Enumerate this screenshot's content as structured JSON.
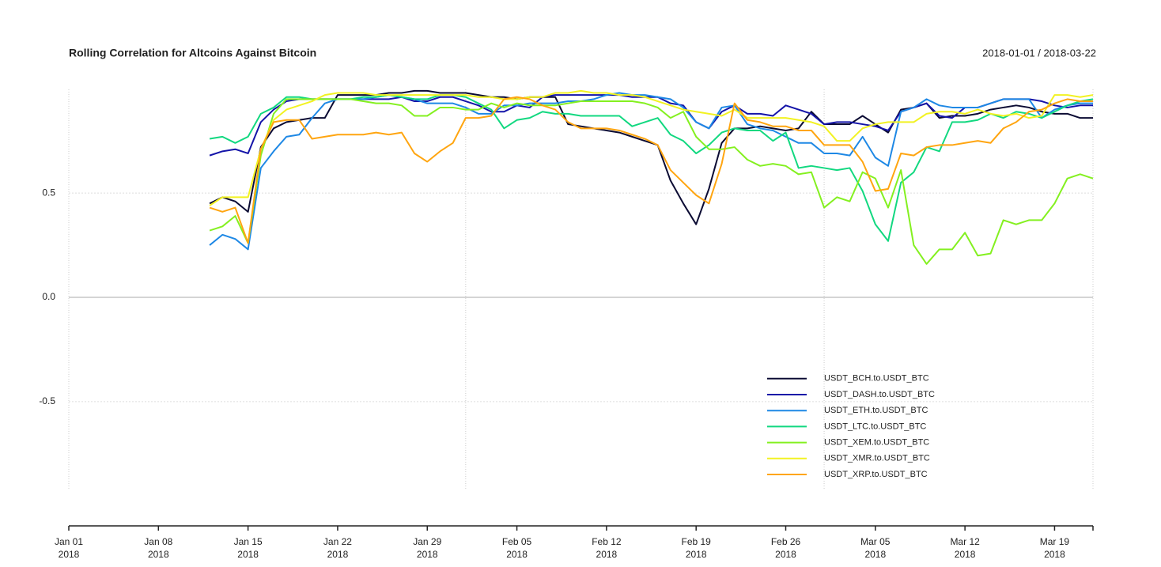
{
  "chart_data": {
    "type": "line",
    "title": "Rolling Correlation for Altcoins Against Bitcoin",
    "subtitle": "2018-01-01 / 2018-03-22",
    "x": [
      "2018-01-12",
      "2018-01-13",
      "2018-01-14",
      "2018-01-15",
      "2018-01-16",
      "2018-01-17",
      "2018-01-18",
      "2018-01-19",
      "2018-01-20",
      "2018-01-21",
      "2018-01-22",
      "2018-01-23",
      "2018-01-24",
      "2018-01-25",
      "2018-01-26",
      "2018-01-27",
      "2018-01-28",
      "2018-01-29",
      "2018-01-30",
      "2018-01-31",
      "2018-02-01",
      "2018-02-02",
      "2018-02-03",
      "2018-02-04",
      "2018-02-05",
      "2018-02-06",
      "2018-02-07",
      "2018-02-08",
      "2018-02-09",
      "2018-02-10",
      "2018-02-11",
      "2018-02-12",
      "2018-02-13",
      "2018-02-14",
      "2018-02-15",
      "2018-02-16",
      "2018-02-17",
      "2018-02-18",
      "2018-02-19",
      "2018-02-20",
      "2018-02-21",
      "2018-02-22",
      "2018-02-23",
      "2018-02-24",
      "2018-02-25",
      "2018-02-26",
      "2018-02-27",
      "2018-02-28",
      "2018-03-01",
      "2018-03-02",
      "2018-03-03",
      "2018-03-04",
      "2018-03-05",
      "2018-03-06",
      "2018-03-07",
      "2018-03-08",
      "2018-03-09",
      "2018-03-10",
      "2018-03-11",
      "2018-03-12",
      "2018-03-13",
      "2018-03-14",
      "2018-03-15",
      "2018-03-16",
      "2018-03-17",
      "2018-03-18",
      "2018-03-19",
      "2018-03-20",
      "2018-03-21",
      "2018-03-22"
    ],
    "series": [
      {
        "name": "USDT_BCH.to.USDT_BTC",
        "color": "#0b0b33",
        "values": [
          0.45,
          0.48,
          0.46,
          0.41,
          0.72,
          0.81,
          0.84,
          0.85,
          0.86,
          0.86,
          0.97,
          0.97,
          0.97,
          0.97,
          0.98,
          0.98,
          0.99,
          0.99,
          0.98,
          0.98,
          0.98,
          0.97,
          0.96,
          0.96,
          0.95,
          0.96,
          0.96,
          0.96,
          0.83,
          0.82,
          0.81,
          0.8,
          0.79,
          0.77,
          0.75,
          0.73,
          0.56,
          0.45,
          0.35,
          0.52,
          0.74,
          0.81,
          0.81,
          0.82,
          0.81,
          0.8,
          0.81,
          0.89,
          0.83,
          0.83,
          0.83,
          0.87,
          0.83,
          0.79,
          0.9,
          0.91,
          0.93,
          0.86,
          0.87,
          0.87,
          0.88,
          0.9,
          0.91,
          0.92,
          0.91,
          0.89,
          0.88,
          0.88,
          0.86,
          0.86
        ]
      },
      {
        "name": "USDT_DASH.to.USDT_BTC",
        "color": "#1414a8",
        "values": [
          0.68,
          0.7,
          0.71,
          0.69,
          0.84,
          0.9,
          0.94,
          0.95,
          0.95,
          0.95,
          0.95,
          0.95,
          0.95,
          0.95,
          0.95,
          0.96,
          0.94,
          0.94,
          0.96,
          0.96,
          0.94,
          0.92,
          0.89,
          0.89,
          0.92,
          0.91,
          0.96,
          0.97,
          0.97,
          0.97,
          0.97,
          0.97,
          0.97,
          0.96,
          0.96,
          0.96,
          0.93,
          0.92,
          0.84,
          0.81,
          0.89,
          0.92,
          0.88,
          0.88,
          0.87,
          0.92,
          0.9,
          0.88,
          0.83,
          0.84,
          0.84,
          0.83,
          0.82,
          0.8,
          0.89,
          0.91,
          0.93,
          0.87,
          0.86,
          0.91,
          0.91,
          0.93,
          0.95,
          0.95,
          0.95,
          0.94,
          0.92,
          0.91,
          0.92,
          0.92
        ]
      },
      {
        "name": "USDT_ETH.to.USDT_BTC",
        "color": "#1e88e5",
        "values": [
          0.25,
          0.3,
          0.28,
          0.23,
          0.62,
          0.7,
          0.77,
          0.78,
          0.86,
          0.93,
          0.95,
          0.95,
          0.95,
          0.96,
          0.97,
          0.96,
          0.95,
          0.93,
          0.93,
          0.93,
          0.91,
          0.88,
          0.88,
          0.92,
          0.92,
          0.93,
          0.93,
          0.93,
          0.94,
          0.94,
          0.95,
          0.97,
          0.98,
          0.97,
          0.97,
          0.96,
          0.95,
          0.91,
          0.84,
          0.81,
          0.91,
          0.92,
          0.83,
          0.81,
          0.8,
          0.77,
          0.74,
          0.74,
          0.69,
          0.69,
          0.68,
          0.77,
          0.67,
          0.63,
          0.89,
          0.91,
          0.95,
          0.92,
          0.91,
          0.91,
          0.91,
          0.93,
          0.95,
          0.95,
          0.95,
          0.86,
          0.9,
          0.92,
          0.93,
          0.93
        ]
      },
      {
        "name": "USDT_LTC.to.USDT_BTC",
        "color": "#12d880",
        "values": [
          0.76,
          0.77,
          0.74,
          0.77,
          0.88,
          0.91,
          0.96,
          0.96,
          0.95,
          0.95,
          0.95,
          0.95,
          0.96,
          0.96,
          0.97,
          0.96,
          0.95,
          0.95,
          0.97,
          0.97,
          0.96,
          0.93,
          0.9,
          0.81,
          0.85,
          0.86,
          0.89,
          0.88,
          0.88,
          0.87,
          0.87,
          0.87,
          0.87,
          0.82,
          0.84,
          0.86,
          0.78,
          0.75,
          0.69,
          0.73,
          0.79,
          0.81,
          0.8,
          0.8,
          0.75,
          0.79,
          0.62,
          0.63,
          0.62,
          0.61,
          0.62,
          0.51,
          0.35,
          0.27,
          0.55,
          0.6,
          0.72,
          0.7,
          0.84,
          0.84,
          0.85,
          0.88,
          0.86,
          0.89,
          0.88,
          0.86,
          0.89,
          0.92,
          0.94,
          0.95
        ]
      },
      {
        "name": "USDT_XEM.to.USDT_BTC",
        "color": "#84f020",
        "values": [
          0.32,
          0.34,
          0.39,
          0.26,
          0.68,
          0.88,
          0.95,
          0.95,
          0.95,
          0.95,
          0.95,
          0.95,
          0.94,
          0.93,
          0.93,
          0.92,
          0.87,
          0.87,
          0.91,
          0.91,
          0.9,
          0.9,
          0.93,
          0.91,
          0.93,
          0.92,
          0.92,
          0.92,
          0.93,
          0.94,
          0.94,
          0.94,
          0.94,
          0.94,
          0.93,
          0.91,
          0.86,
          0.89,
          0.77,
          0.71,
          0.71,
          0.72,
          0.66,
          0.63,
          0.64,
          0.63,
          0.59,
          0.6,
          0.43,
          0.48,
          0.46,
          0.6,
          0.57,
          0.43,
          0.61,
          0.25,
          0.16,
          0.23,
          0.23,
          0.31,
          0.2,
          0.21,
          0.37,
          0.35,
          0.37,
          0.37,
          0.45,
          0.57,
          0.59,
          0.57
        ]
      },
      {
        "name": "USDT_XMR.to.USDT_BTC",
        "color": "#f2f222",
        "values": [
          0.44,
          0.48,
          0.48,
          0.48,
          0.71,
          0.85,
          0.9,
          0.92,
          0.94,
          0.97,
          0.98,
          0.98,
          0.98,
          0.97,
          0.97,
          0.97,
          0.97,
          0.97,
          0.97,
          0.97,
          0.97,
          0.96,
          0.96,
          0.95,
          0.95,
          0.96,
          0.96,
          0.98,
          0.98,
          0.99,
          0.98,
          0.98,
          0.97,
          0.97,
          0.96,
          0.94,
          0.92,
          0.9,
          0.89,
          0.88,
          0.87,
          0.9,
          0.86,
          0.86,
          0.86,
          0.86,
          0.85,
          0.84,
          0.82,
          0.75,
          0.75,
          0.81,
          0.83,
          0.84,
          0.84,
          0.84,
          0.88,
          0.89,
          0.89,
          0.88,
          0.9,
          0.88,
          0.87,
          0.88,
          0.86,
          0.87,
          0.97,
          0.97,
          0.96,
          0.97
        ]
      },
      {
        "name": "USDT_XRP.to.USDT_BTC",
        "color": "#ffa510",
        "values": [
          0.43,
          0.41,
          0.43,
          0.26,
          0.71,
          0.84,
          0.85,
          0.85,
          0.76,
          0.77,
          0.78,
          0.78,
          0.78,
          0.79,
          0.78,
          0.79,
          0.69,
          0.65,
          0.7,
          0.74,
          0.86,
          0.86,
          0.87,
          0.95,
          0.96,
          0.95,
          0.92,
          0.9,
          0.84,
          0.81,
          0.81,
          0.81,
          0.8,
          0.78,
          0.76,
          0.73,
          0.61,
          0.55,
          0.49,
          0.45,
          0.64,
          0.93,
          0.85,
          0.84,
          0.82,
          0.82,
          0.8,
          0.8,
          0.73,
          0.73,
          0.73,
          0.65,
          0.51,
          0.52,
          0.69,
          0.68,
          0.72,
          0.73,
          0.73,
          0.74,
          0.75,
          0.74,
          0.81,
          0.84,
          0.89,
          0.9,
          0.93,
          0.95,
          0.94,
          0.94
        ]
      }
    ],
    "xlim": [
      "2018-01-01",
      "2018-03-22"
    ],
    "xticks": [
      {
        "value": "2018-01-01",
        "label": "Jan 01\n2018"
      },
      {
        "value": "2018-01-08",
        "label": "Jan 08\n2018"
      },
      {
        "value": "2018-01-15",
        "label": "Jan 15\n2018"
      },
      {
        "value": "2018-01-22",
        "label": "Jan 22\n2018"
      },
      {
        "value": "2018-01-29",
        "label": "Jan 29\n2018"
      },
      {
        "value": "2018-02-05",
        "label": "Feb 05\n2018"
      },
      {
        "value": "2018-02-12",
        "label": "Feb 12\n2018"
      },
      {
        "value": "2018-02-19",
        "label": "Feb 19\n2018"
      },
      {
        "value": "2018-02-26",
        "label": "Feb 26\n2018"
      },
      {
        "value": "2018-03-05",
        "label": "Mar 05\n2018"
      },
      {
        "value": "2018-03-12",
        "label": "Mar 12\n2018"
      },
      {
        "value": "2018-03-19",
        "label": "Mar 19\n2018"
      }
    ],
    "ylim": [
      -0.925,
      0.997
    ],
    "yticks": [
      0.5,
      {
        "value": 0,
        "label": "0.0"
      },
      -0.5
    ],
    "grid": true,
    "legend": "bottom right"
  }
}
